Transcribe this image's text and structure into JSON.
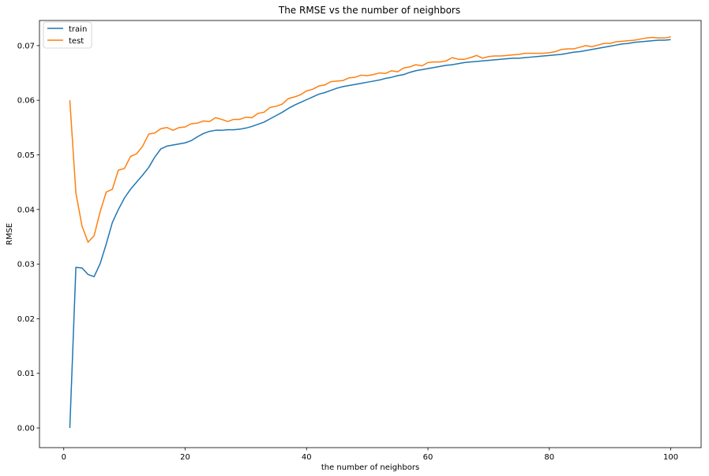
{
  "chart_data": {
    "type": "line",
    "title": "The RMSE vs the number of neighbors",
    "xlabel": "the number of neighbors",
    "ylabel": "RMSE",
    "xlim": [
      -4,
      105
    ],
    "ylim": [
      -0.0036,
      0.0746
    ],
    "xticks": [
      0,
      20,
      40,
      60,
      80,
      100
    ],
    "xtick_labels": [
      "0",
      "20",
      "40",
      "60",
      "80",
      "100"
    ],
    "yticks": [
      0.0,
      0.01,
      0.02,
      0.03,
      0.04,
      0.05,
      0.06,
      0.07
    ],
    "ytick_labels": [
      "0.00",
      "0.01",
      "0.02",
      "0.03",
      "0.04",
      "0.05",
      "0.06",
      "0.07"
    ],
    "grid": false,
    "legend": "upper left",
    "x": [
      1,
      2,
      3,
      4,
      5,
      6,
      7,
      8,
      9,
      10,
      11,
      12,
      13,
      14,
      15,
      16,
      17,
      18,
      19,
      20,
      21,
      22,
      23,
      24,
      25,
      26,
      27,
      28,
      29,
      30,
      31,
      32,
      33,
      34,
      35,
      36,
      37,
      38,
      39,
      40,
      41,
      42,
      43,
      44,
      45,
      46,
      47,
      48,
      49,
      50,
      51,
      52,
      53,
      54,
      55,
      56,
      57,
      58,
      59,
      60,
      61,
      62,
      63,
      64,
      65,
      66,
      67,
      68,
      69,
      70,
      71,
      72,
      73,
      74,
      75,
      76,
      77,
      78,
      79,
      80,
      81,
      82,
      83,
      84,
      85,
      86,
      87,
      88,
      89,
      90,
      91,
      92,
      93,
      94,
      95,
      96,
      97,
      98,
      99,
      100
    ],
    "series": [
      {
        "name": "train",
        "color": "#1f77b4",
        "values": [
          0.0,
          0.0294,
          0.0293,
          0.0281,
          0.0277,
          0.0301,
          0.0337,
          0.0376,
          0.04,
          0.0421,
          0.0437,
          0.045,
          0.0463,
          0.0477,
          0.0496,
          0.0511,
          0.0516,
          0.0518,
          0.052,
          0.0522,
          0.0526,
          0.0533,
          0.0539,
          0.0543,
          0.0545,
          0.0545,
          0.0546,
          0.0546,
          0.0547,
          0.0549,
          0.0552,
          0.0556,
          0.056,
          0.0566,
          0.0572,
          0.0578,
          0.0585,
          0.0591,
          0.0596,
          0.0601,
          0.0606,
          0.0611,
          0.0614,
          0.0618,
          0.0622,
          0.0625,
          0.0627,
          0.0629,
          0.0631,
          0.0633,
          0.0635,
          0.0637,
          0.064,
          0.0642,
          0.0645,
          0.0647,
          0.0651,
          0.0654,
          0.0656,
          0.0658,
          0.066,
          0.0662,
          0.0664,
          0.0665,
          0.0667,
          0.0669,
          0.067,
          0.0671,
          0.0672,
          0.0673,
          0.0674,
          0.0675,
          0.0676,
          0.0677,
          0.0677,
          0.0678,
          0.0679,
          0.068,
          0.0681,
          0.0682,
          0.0683,
          0.0684,
          0.0686,
          0.0688,
          0.0689,
          0.0691,
          0.0693,
          0.0695,
          0.0697,
          0.0699,
          0.0701,
          0.0703,
          0.0704,
          0.0706,
          0.0707,
          0.0708,
          0.0709,
          0.071,
          0.071,
          0.0711
        ]
      },
      {
        "name": "test",
        "color": "#ff7f0e",
        "values": [
          0.06,
          0.043,
          0.037,
          0.034,
          0.0352,
          0.0396,
          0.0432,
          0.0437,
          0.0472,
          0.0475,
          0.0497,
          0.0502,
          0.0516,
          0.0538,
          0.054,
          0.0548,
          0.055,
          0.0545,
          0.055,
          0.0551,
          0.0557,
          0.0558,
          0.0562,
          0.0561,
          0.0568,
          0.0565,
          0.0561,
          0.0565,
          0.0565,
          0.0569,
          0.0568,
          0.0576,
          0.0578,
          0.0587,
          0.0589,
          0.0593,
          0.0603,
          0.0606,
          0.061,
          0.0617,
          0.062,
          0.0626,
          0.0628,
          0.0634,
          0.0635,
          0.0636,
          0.0641,
          0.0642,
          0.0646,
          0.0645,
          0.0647,
          0.065,
          0.0649,
          0.0654,
          0.0652,
          0.0659,
          0.0661,
          0.0665,
          0.0663,
          0.0669,
          0.067,
          0.067,
          0.0672,
          0.0678,
          0.0675,
          0.0675,
          0.0678,
          0.0682,
          0.0677,
          0.068,
          0.0681,
          0.0681,
          0.0682,
          0.0683,
          0.0684,
          0.0686,
          0.0686,
          0.0686,
          0.0686,
          0.0687,
          0.0689,
          0.0693,
          0.0694,
          0.0694,
          0.0697,
          0.07,
          0.0698,
          0.0701,
          0.0704,
          0.0704,
          0.0707,
          0.0708,
          0.0709,
          0.071,
          0.0712,
          0.0714,
          0.0715,
          0.0714,
          0.0714,
          0.0716
        ]
      }
    ]
  }
}
